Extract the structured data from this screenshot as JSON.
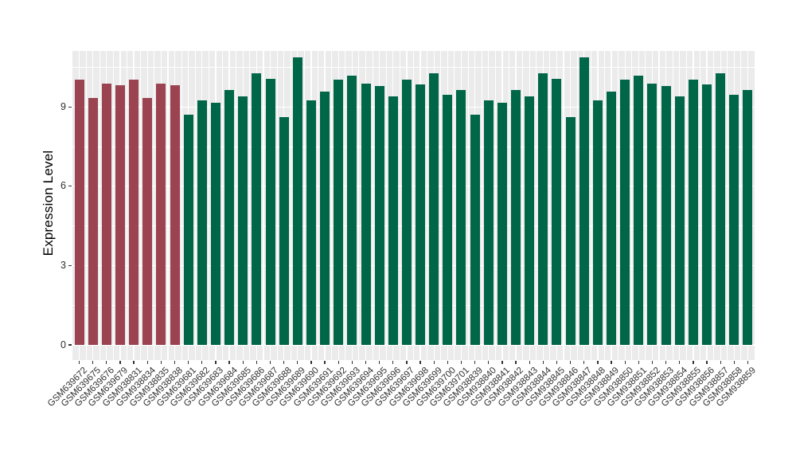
{
  "chart_data": {
    "type": "bar",
    "title": "",
    "xlabel": "",
    "ylabel": "Expression Level",
    "y_ticks": [
      0,
      3,
      6,
      9
    ],
    "y_minor_ticks": [
      1.5,
      4.5,
      7.5,
      10.5
    ],
    "ylim": [
      -0.55,
      11.11
    ],
    "grid": true,
    "legend": false,
    "panel_background": "#EBEBEB",
    "gridline_color": "#FFFFFF",
    "group_colors": [
      "#9B4351",
      "#006648"
    ],
    "bars": [
      {
        "label": "GSM639672",
        "value": 10.02,
        "group": 0
      },
      {
        "label": "GSM639675",
        "value": 9.35,
        "group": 0
      },
      {
        "label": "GSM639676",
        "value": 9.89,
        "group": 0
      },
      {
        "label": "GSM639679",
        "value": 9.81,
        "group": 0
      },
      {
        "label": "GSM938831",
        "value": 10.02,
        "group": 0
      },
      {
        "label": "GSM938834",
        "value": 9.35,
        "group": 0
      },
      {
        "label": "GSM938835",
        "value": 9.89,
        "group": 0
      },
      {
        "label": "GSM938838",
        "value": 9.81,
        "group": 0
      },
      {
        "label": "GSM639681",
        "value": 8.69,
        "group": 1
      },
      {
        "label": "GSM639682",
        "value": 9.26,
        "group": 1
      },
      {
        "label": "GSM639683",
        "value": 9.15,
        "group": 1
      },
      {
        "label": "GSM639684",
        "value": 9.63,
        "group": 1
      },
      {
        "label": "GSM639685",
        "value": 9.4,
        "group": 1
      },
      {
        "label": "GSM639686",
        "value": 10.26,
        "group": 1
      },
      {
        "label": "GSM639687",
        "value": 10.07,
        "group": 1
      },
      {
        "label": "GSM639688",
        "value": 8.62,
        "group": 1
      },
      {
        "label": "GSM639689",
        "value": 10.86,
        "group": 1
      },
      {
        "label": "GSM639690",
        "value": 9.24,
        "group": 1
      },
      {
        "label": "GSM639691",
        "value": 9.57,
        "group": 1
      },
      {
        "label": "GSM639692",
        "value": 10.03,
        "group": 1
      },
      {
        "label": "GSM639693",
        "value": 10.17,
        "group": 1
      },
      {
        "label": "GSM639694",
        "value": 9.88,
        "group": 1
      },
      {
        "label": "GSM639695",
        "value": 9.79,
        "group": 1
      },
      {
        "label": "GSM639696",
        "value": 9.4,
        "group": 1
      },
      {
        "label": "GSM639697",
        "value": 10.03,
        "group": 1
      },
      {
        "label": "GSM639698",
        "value": 9.85,
        "group": 1
      },
      {
        "label": "GSM639699",
        "value": 10.28,
        "group": 1
      },
      {
        "label": "GSM639700",
        "value": 9.47,
        "group": 1
      },
      {
        "label": "GSM639701",
        "value": 9.65,
        "group": 1
      },
      {
        "label": "GSM938839",
        "value": 8.69,
        "group": 1
      },
      {
        "label": "GSM938840",
        "value": 9.26,
        "group": 1
      },
      {
        "label": "GSM938841",
        "value": 9.15,
        "group": 1
      },
      {
        "label": "GSM938842",
        "value": 9.63,
        "group": 1
      },
      {
        "label": "GSM938843",
        "value": 9.4,
        "group": 1
      },
      {
        "label": "GSM938844",
        "value": 10.26,
        "group": 1
      },
      {
        "label": "GSM938845",
        "value": 10.07,
        "group": 1
      },
      {
        "label": "GSM938846",
        "value": 8.62,
        "group": 1
      },
      {
        "label": "GSM938847",
        "value": 10.86,
        "group": 1
      },
      {
        "label": "GSM938848",
        "value": 9.24,
        "group": 1
      },
      {
        "label": "GSM938849",
        "value": 9.57,
        "group": 1
      },
      {
        "label": "GSM938850",
        "value": 10.03,
        "group": 1
      },
      {
        "label": "GSM938851",
        "value": 10.17,
        "group": 1
      },
      {
        "label": "GSM938852",
        "value": 9.88,
        "group": 1
      },
      {
        "label": "GSM938853",
        "value": 9.79,
        "group": 1
      },
      {
        "label": "GSM938854",
        "value": 9.4,
        "group": 1
      },
      {
        "label": "GSM938855",
        "value": 10.03,
        "group": 1
      },
      {
        "label": "GSM938856",
        "value": 9.85,
        "group": 1
      },
      {
        "label": "GSM938857",
        "value": 10.28,
        "group": 1
      },
      {
        "label": "GSM938858",
        "value": 9.47,
        "group": 1
      },
      {
        "label": "GSM938859",
        "value": 9.65,
        "group": 1
      }
    ]
  }
}
